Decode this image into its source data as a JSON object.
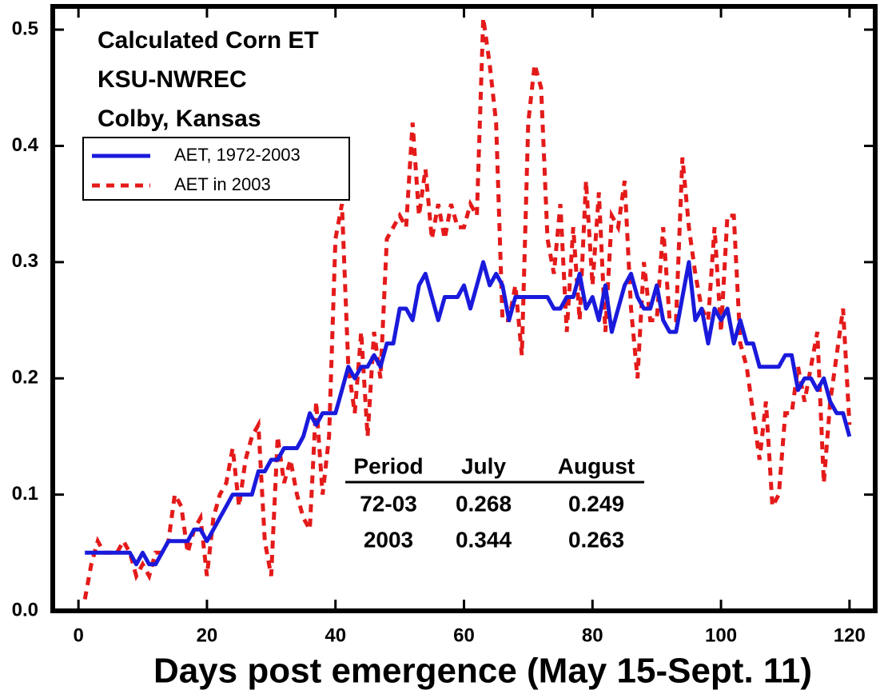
{
  "chart_data": {
    "type": "line",
    "annotations": [
      "Calculated Corn ET",
      "KSU-NWREC",
      "Colby, Kansas"
    ],
    "xlabel": "Days post emergence (May 15-Sept. 11)",
    "x": [
      1,
      2,
      3,
      4,
      5,
      6,
      7,
      8,
      9,
      10,
      11,
      12,
      13,
      14,
      15,
      16,
      17,
      18,
      19,
      20,
      21,
      22,
      23,
      24,
      25,
      26,
      27,
      28,
      29,
      30,
      31,
      32,
      33,
      34,
      35,
      36,
      37,
      38,
      39,
      40,
      41,
      42,
      43,
      44,
      45,
      46,
      47,
      48,
      49,
      50,
      51,
      52,
      53,
      54,
      55,
      56,
      57,
      58,
      59,
      60,
      61,
      62,
      63,
      64,
      65,
      66,
      67,
      68,
      69,
      70,
      71,
      72,
      73,
      74,
      75,
      76,
      77,
      78,
      79,
      80,
      81,
      82,
      83,
      84,
      85,
      86,
      87,
      88,
      89,
      90,
      91,
      92,
      93,
      94,
      95,
      96,
      97,
      98,
      99,
      100,
      101,
      102,
      103,
      104,
      105,
      106,
      107,
      108,
      109,
      110,
      111,
      112,
      113,
      114,
      115,
      116,
      117,
      118,
      119,
      120
    ],
    "series": [
      {
        "name": "AET, 1972-2003",
        "color": "#1a1adc",
        "style": "solid",
        "values": [
          0.05,
          0.05,
          0.05,
          0.05,
          0.05,
          0.05,
          0.05,
          0.05,
          0.04,
          0.05,
          0.04,
          0.04,
          0.05,
          0.06,
          0.06,
          0.06,
          0.06,
          0.07,
          0.07,
          0.06,
          0.07,
          0.08,
          0.09,
          0.1,
          0.1,
          0.1,
          0.1,
          0.12,
          0.12,
          0.13,
          0.13,
          0.14,
          0.14,
          0.14,
          0.15,
          0.17,
          0.16,
          0.17,
          0.17,
          0.17,
          0.19,
          0.21,
          0.2,
          0.21,
          0.21,
          0.22,
          0.21,
          0.23,
          0.23,
          0.26,
          0.26,
          0.25,
          0.28,
          0.29,
          0.27,
          0.25,
          0.27,
          0.27,
          0.27,
          0.28,
          0.26,
          0.28,
          0.3,
          0.28,
          0.29,
          0.28,
          0.25,
          0.27,
          0.27,
          0.27,
          0.27,
          0.27,
          0.27,
          0.26,
          0.26,
          0.27,
          0.27,
          0.29,
          0.26,
          0.27,
          0.25,
          0.28,
          0.24,
          0.26,
          0.28,
          0.29,
          0.27,
          0.26,
          0.26,
          0.28,
          0.25,
          0.24,
          0.24,
          0.27,
          0.3,
          0.25,
          0.26,
          0.23,
          0.26,
          0.25,
          0.26,
          0.23,
          0.25,
          0.23,
          0.23,
          0.21,
          0.21,
          0.21,
          0.21,
          0.22,
          0.22,
          0.19,
          0.2,
          0.2,
          0.19,
          0.2,
          0.18,
          0.17,
          0.17,
          0.15
        ]
      },
      {
        "name": "AET in 2003",
        "color": "#e41a1a",
        "style": "dashed",
        "values": [
          0.01,
          0.04,
          0.06,
          0.05,
          0.05,
          0.05,
          0.06,
          0.05,
          0.03,
          0.04,
          0.03,
          0.05,
          0.05,
          0.06,
          0.1,
          0.09,
          0.05,
          0.07,
          0.08,
          0.03,
          0.08,
          0.1,
          0.11,
          0.14,
          0.09,
          0.13,
          0.15,
          0.16,
          0.06,
          0.03,
          0.15,
          0.11,
          0.13,
          0.1,
          0.08,
          0.07,
          0.18,
          0.1,
          0.15,
          0.32,
          0.35,
          0.21,
          0.17,
          0.24,
          0.15,
          0.24,
          0.2,
          0.32,
          0.33,
          0.34,
          0.33,
          0.42,
          0.34,
          0.38,
          0.32,
          0.35,
          0.32,
          0.35,
          0.33,
          0.33,
          0.35,
          0.34,
          0.51,
          0.47,
          0.42,
          0.25,
          0.25,
          0.28,
          0.22,
          0.42,
          0.47,
          0.45,
          0.32,
          0.29,
          0.35,
          0.24,
          0.33,
          0.25,
          0.37,
          0.28,
          0.36,
          0.24,
          0.34,
          0.33,
          0.37,
          0.26,
          0.2,
          0.3,
          0.25,
          0.25,
          0.33,
          0.25,
          0.25,
          0.39,
          0.33,
          0.29,
          0.26,
          0.25,
          0.33,
          0.24,
          0.34,
          0.34,
          0.23,
          0.21,
          0.17,
          0.13,
          0.18,
          0.09,
          0.1,
          0.17,
          0.17,
          0.21,
          0.18,
          0.21,
          0.24,
          0.11,
          0.18,
          0.22,
          0.26,
          0.16
        ]
      }
    ],
    "xlim": [
      -4,
      124
    ],
    "xticks": [
      0,
      20,
      40,
      60,
      80,
      100,
      120
    ],
    "ylim": [
      0,
      0.52
    ],
    "yticks": [
      {
        "value": 0,
        "label": "0.0"
      },
      0.1,
      0.2,
      0.3,
      0.4,
      0.5
    ],
    "legend": "upper left",
    "table": {
      "header": [
        "Period",
        "July",
        "August"
      ],
      "rows": [
        [
          "72-03",
          "0.268",
          "0.249"
        ],
        [
          "2003",
          "0.344",
          "0.263"
        ]
      ]
    }
  }
}
